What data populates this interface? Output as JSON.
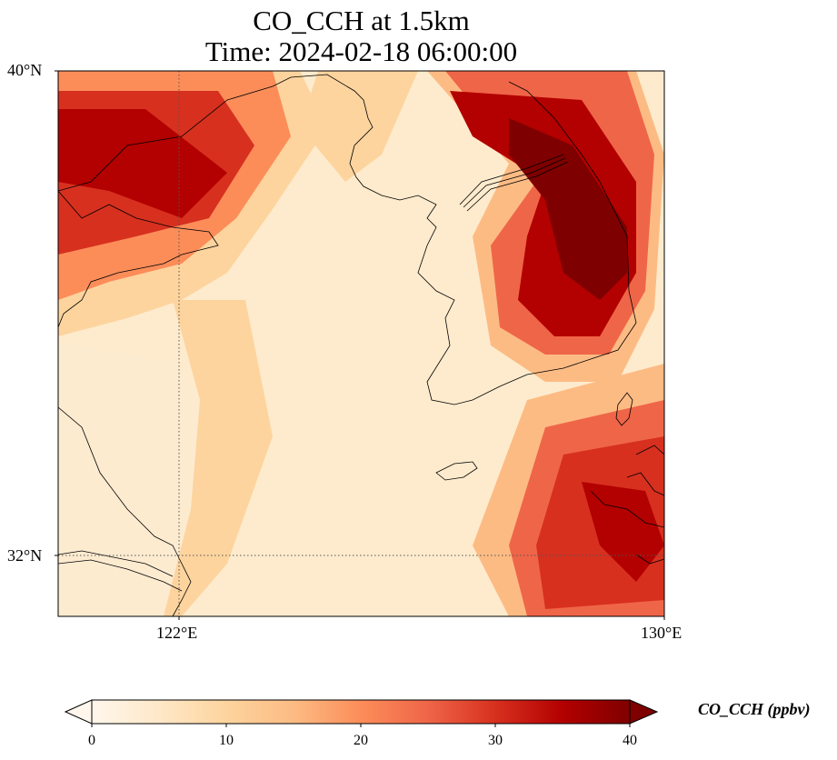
{
  "title": {
    "line1": "CO_CCH at 1.5km",
    "line2": "Time: 2024-02-18 06:00:00"
  },
  "map": {
    "lat_range": [
      31,
      40
    ],
    "lon_range": [
      120,
      130
    ],
    "lat_ticks": [
      {
        "value": 40,
        "label": "40°N"
      },
      {
        "value": 32,
        "label": "32°N"
      }
    ],
    "lon_ticks": [
      {
        "value": 122,
        "label": "122°E"
      },
      {
        "value": 130,
        "label": "130°E"
      }
    ],
    "gridlines": true,
    "field_variable": "CO_CCH",
    "coastlines": true
  },
  "colorbar": {
    "label": "CO_CCH (ppbv)",
    "min": 0,
    "max": 40,
    "extend": "both",
    "colormap": "OrRd",
    "colors": [
      "#fff7ec",
      "#fee8c8",
      "#fdd49e",
      "#fdbb84",
      "#fc8d59",
      "#ef6548",
      "#d7301f",
      "#b30000",
      "#7f0000"
    ],
    "ticks": [
      {
        "value": 0,
        "label": "0"
      },
      {
        "value": 10,
        "label": "10"
      },
      {
        "value": 20,
        "label": "20"
      },
      {
        "value": 30,
        "label": "30"
      },
      {
        "value": 40,
        "label": "40"
      }
    ]
  }
}
